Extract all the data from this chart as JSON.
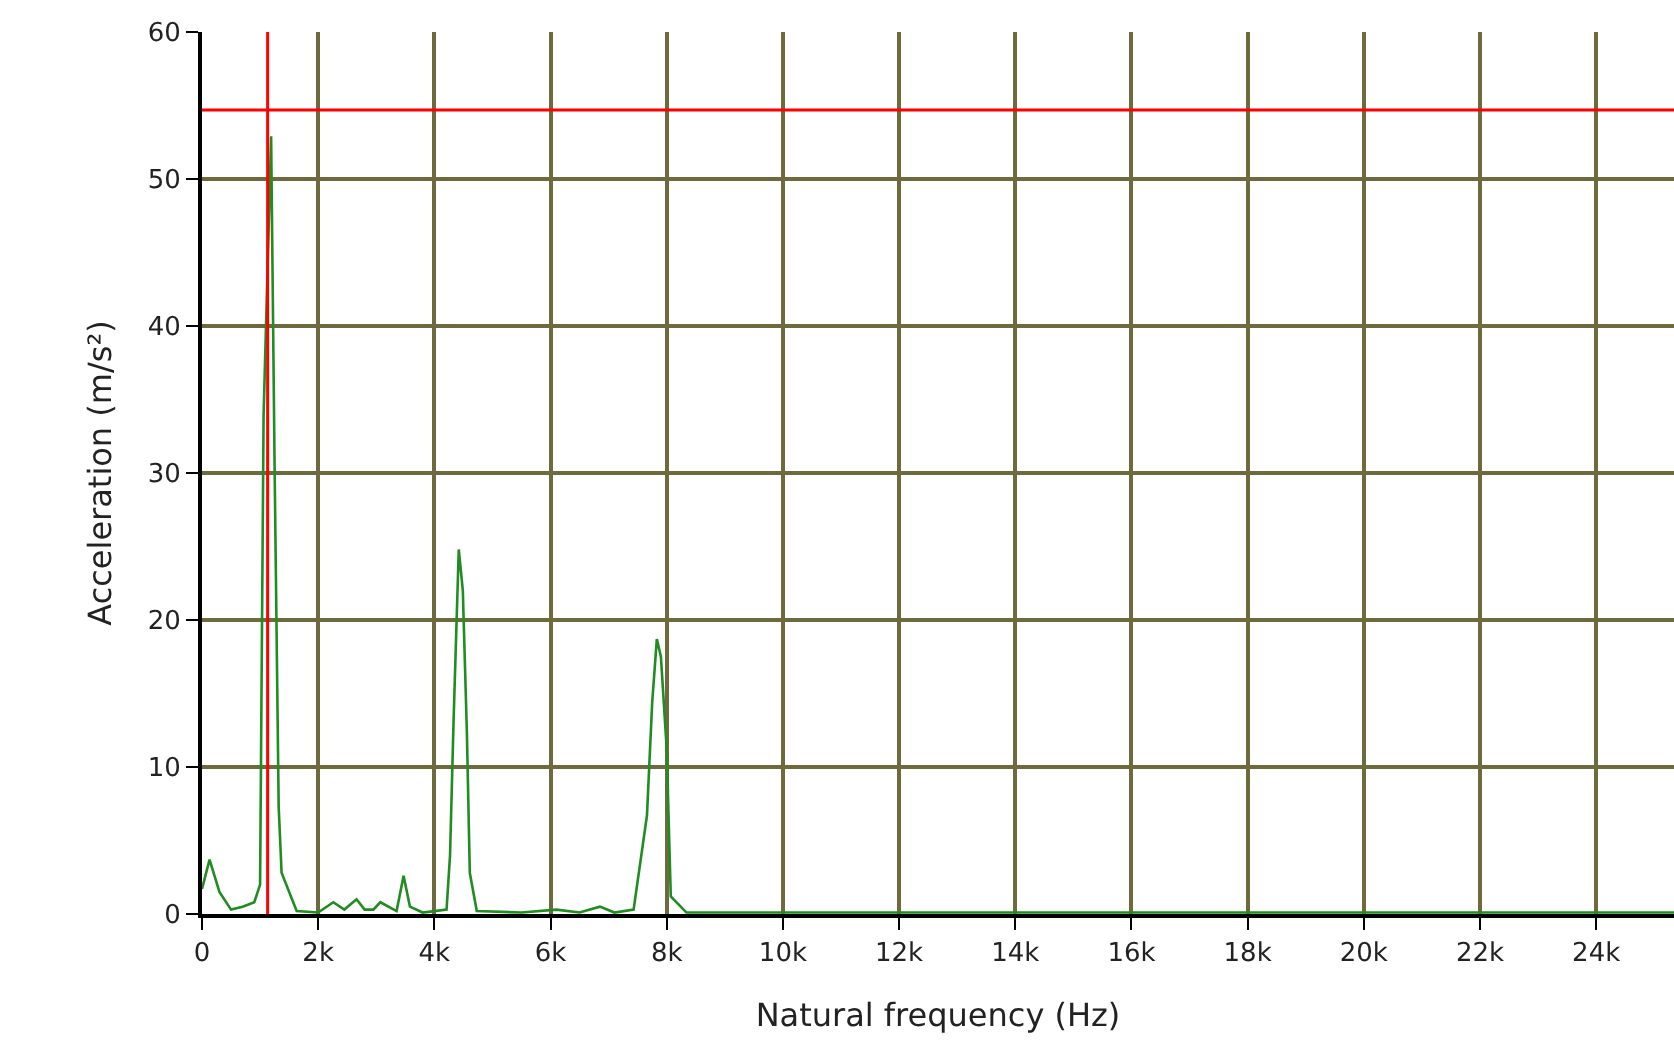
{
  "chart_data": {
    "type": "line",
    "xlabel": "Natural frequency (Hz)",
    "ylabel": "Acceleration (m/s²)",
    "x": [
      0,
      130,
      300,
      500,
      700,
      900,
      1000,
      1060,
      1190,
      1250,
      1320,
      1370,
      1630,
      2000,
      2260,
      2450,
      2660,
      2800,
      2950,
      3070,
      3350,
      3470,
      3580,
      3800,
      4210,
      4270,
      4330,
      4420,
      4490,
      4560,
      4610,
      4730,
      5500,
      6100,
      6500,
      6850,
      7100,
      7430,
      7660,
      7750,
      7830,
      7900,
      8000,
      8070,
      8340,
      10000,
      15000,
      20000,
      25340
    ],
    "series": [
      {
        "color": "#218c21",
        "values": [
          1.7,
          3.7,
          1.5,
          0.3,
          0.5,
          0.8,
          2,
          33.9,
          52.9,
          30.3,
          7.3,
          2.8,
          0.2,
          0.1,
          0.8,
          0.3,
          1,
          0.3,
          0.3,
          0.8,
          0.2,
          2.6,
          0.5,
          0.1,
          0.3,
          4,
          13,
          24.8,
          22,
          12.3,
          2.8,
          0.2,
          0.1,
          0.3,
          0.1,
          0.5,
          0.1,
          0.3,
          6.7,
          14.4,
          18.7,
          17.5,
          11.2,
          1.2,
          0.1,
          0.1,
          0.1,
          0.1,
          0.1
        ]
      }
    ],
    "xlim": [
      0,
      25340
    ],
    "ylim": [
      0,
      60
    ],
    "xticks": [
      0,
      {
        "value": 2000,
        "label": "2k"
      },
      {
        "value": 4000,
        "label": "4k"
      },
      {
        "value": 6000,
        "label": "6k"
      },
      {
        "value": 8000,
        "label": "8k"
      },
      {
        "value": 10000,
        "label": "10k"
      },
      {
        "value": 12000,
        "label": "12k"
      },
      {
        "value": 14000,
        "label": "14k"
      },
      {
        "value": 16000,
        "label": "16k"
      },
      {
        "value": 18000,
        "label": "18k"
      },
      {
        "value": 20000,
        "label": "20k"
      },
      {
        "value": 22000,
        "label": "22k"
      },
      {
        "value": 24000,
        "label": "24k"
      }
    ],
    "yticks": [
      0,
      10,
      20,
      30,
      40,
      50,
      60
    ],
    "grid": true,
    "line_style": "solid",
    "marker": "none",
    "ref_lines": [
      {
        "axis": "y",
        "value": 54.7,
        "color": "#ff0000"
      },
      {
        "axis": "x",
        "value": 1130,
        "color": "#ff0000"
      }
    ]
  }
}
